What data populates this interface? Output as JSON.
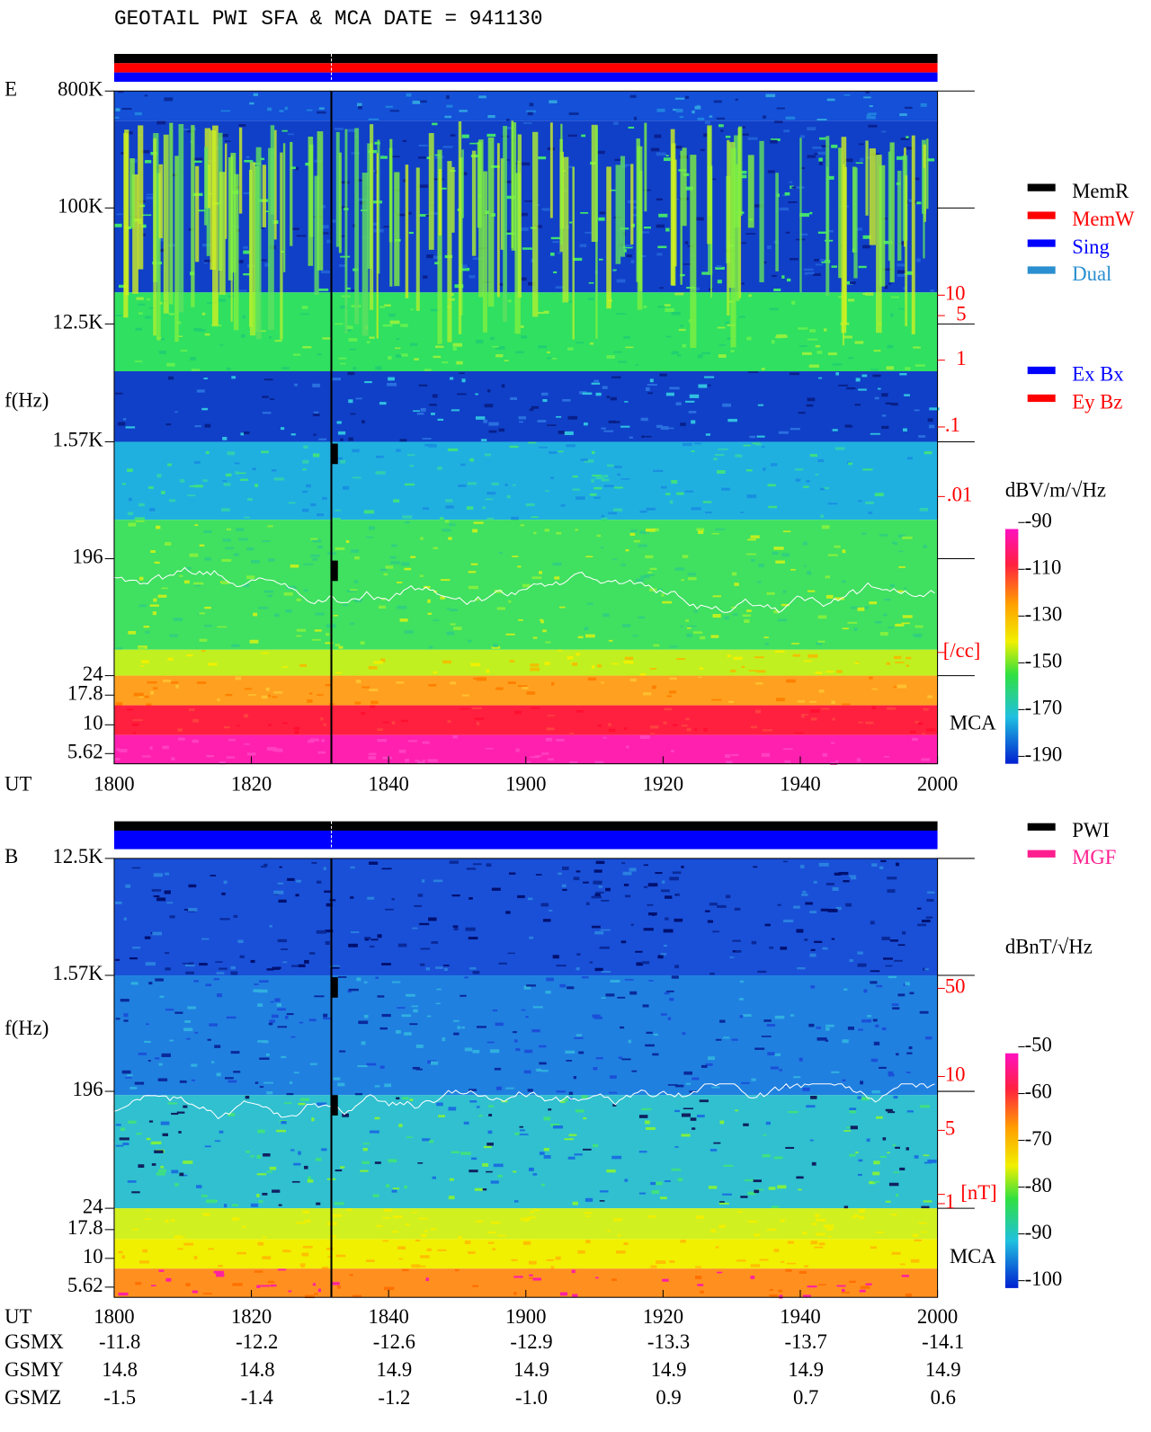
{
  "title": "GEOTAIL  PWI SFA & MCA   DATE = 941130",
  "panels": [
    {
      "label": "E",
      "y_label": "f(Hz)",
      "x_label": "UT",
      "freq_ticks": [
        "800K",
        "100K",
        "12.5K",
        "1.57K",
        "196",
        "24",
        "17.8",
        "10",
        "5.62"
      ],
      "mca_label": "MCA",
      "right_ticks": [
        "10",
        "5",
        "1",
        ".1",
        ".01",
        "[/cc]"
      ],
      "time_ticks": [
        "1800",
        "1820",
        "1840",
        "1900",
        "1920",
        "1940",
        "2000"
      ],
      "unit": "dBV/m/√Hz",
      "colorbar_ticks": [
        "-90",
        "-110",
        "-130",
        "-150",
        "-170",
        "-190"
      ],
      "legend": [
        {
          "name": "MemR",
          "color": "#000000"
        },
        {
          "name": "MemW",
          "color": "#ff0000"
        },
        {
          "name": "Sing",
          "color": "#0000ff"
        },
        {
          "name": "Dual",
          "color": "#2a8fd0"
        }
      ],
      "legend2": [
        {
          "name": "Ex Bx",
          "color": "#0000ff"
        },
        {
          "name": "Ey Bz",
          "color": "#ff0000"
        }
      ]
    },
    {
      "label": "B",
      "y_label": "f(Hz)",
      "x_label": "UT",
      "freq_ticks": [
        "12.5K",
        "1.57K",
        "196",
        "24",
        "17.8",
        "10",
        "5.62"
      ],
      "mca_label": "MCA",
      "right_ticks": [
        "50",
        "10",
        "5",
        "1",
        "[nT]"
      ],
      "time_ticks": [
        "1800",
        "1820",
        "1840",
        "1900",
        "1920",
        "1940",
        "2000"
      ],
      "unit": "dBnT/√Hz",
      "colorbar_ticks": [
        "-50",
        "-60",
        "-70",
        "-80",
        "-90",
        "-100"
      ],
      "legend": [
        {
          "name": "PWI",
          "color": "#000000"
        },
        {
          "name": "MGF",
          "color": "#ff1f8f"
        }
      ]
    }
  ],
  "orbit": [
    {
      "name": "GSMX",
      "values": [
        "-11.8",
        "-12.2",
        "-12.6",
        "-12.9",
        "-13.3",
        "-13.7",
        "-14.1"
      ]
    },
    {
      "name": "GSMY",
      "values": [
        "14.8",
        "14.8",
        "14.9",
        "14.9",
        "14.9",
        "14.9",
        "14.9"
      ]
    },
    {
      "name": "GSMZ",
      "values": [
        "-1.5",
        "-1.4",
        "-1.2",
        "-1.0",
        "0.9",
        "0.7",
        "0.6"
      ]
    }
  ]
}
